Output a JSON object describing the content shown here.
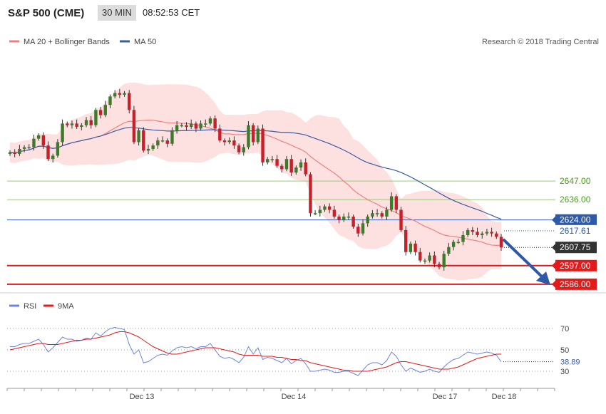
{
  "header": {
    "title": "S&P 500 (CME)",
    "timeframe": "30 MIN",
    "time": "08:52:53 CET"
  },
  "legend": {
    "items": [
      {
        "label": "MA 20 + Bollinger Bands",
        "color": "#f08080"
      },
      {
        "label": "MA 50",
        "color": "#3b5ba5"
      }
    ],
    "credit": "Research © 2018 Trading Central"
  },
  "price_levels": [
    {
      "value": 2647.0,
      "label": "2647.00",
      "color": "#8dc26b",
      "label_color": "#4a9a1e",
      "bg": "#ffffff",
      "style": "thin-line"
    },
    {
      "value": 2636.0,
      "label": "2636.00",
      "color": "#8dc26b",
      "label_color": "#4a9a1e",
      "bg": "#ffffff",
      "style": "thin-line"
    },
    {
      "value": 2624.0,
      "label": "2624.00",
      "color": "#2d5aa8",
      "label_color": "#ffffff",
      "bg": "#2d5aa8",
      "style": "line"
    },
    {
      "value": 2617.61,
      "label": "2617.61",
      "color": "#2d5aa8",
      "label_color": "#2d5aa8",
      "bg": "#ffffff",
      "style": "dotted"
    },
    {
      "value": 2607.75,
      "label": "2607.75",
      "color": "#222222",
      "label_color": "#ffffff",
      "bg": "#333333",
      "style": "dotted"
    },
    {
      "value": 2597.0,
      "label": "2597.00",
      "color": "#e21a1a",
      "label_color": "#ffffff",
      "bg": "#e21a1a",
      "style": "thick-line"
    },
    {
      "value": 2586.0,
      "label": "2586.00",
      "color": "#e21a1a",
      "label_color": "#ffffff",
      "bg": "#e21a1a",
      "style": "thick-line"
    }
  ],
  "rsi_legend": [
    {
      "label": "RSI",
      "color": "#6d85e0"
    },
    {
      "label": "9MA",
      "color": "#e21a1a"
    }
  ],
  "rsi_ticks": [
    "70",
    "50",
    "30"
  ],
  "rsi_current": "38.89",
  "date_labels": [
    "Dec 13",
    "Dec 14",
    "Dec 17",
    "Dec 18"
  ],
  "chart_data": {
    "type": "line",
    "title": "S&P 500 (CME)",
    "subtitle": "30 MIN",
    "price_series": {
      "name": "",
      "values": [
        2664,
        2663,
        2666,
        2667,
        2667,
        2672,
        2674,
        2668,
        2660,
        2662,
        2670,
        2681,
        2680,
        2681,
        2679,
        2680,
        2683,
        2680,
        2689,
        2686,
        2692,
        2697,
        2699,
        2698,
        2699,
        2689,
        2670,
        2677,
        2665,
        2666,
        2668,
        2671,
        2671,
        2669,
        2677,
        2680,
        2680,
        2679,
        2681,
        2678,
        2681,
        2681,
        2684,
        2678,
        2671,
        2670,
        2671,
        2668,
        2664,
        2667,
        2680,
        2670,
        2678,
        2658,
        2660,
        2660,
        2656,
        2654,
        2660,
        2652,
        2655,
        2658,
        2651,
        2628,
        2628,
        2630,
        2632,
        2630,
        2626,
        2624,
        2626,
        2626,
        2620,
        2616,
        2622,
        2626,
        2628,
        2628,
        2626,
        2630,
        2638,
        2630,
        2618,
        2605,
        2610,
        2605,
        2600,
        2600,
        2603,
        2598,
        2596,
        2604,
        2608,
        2611,
        2611,
        2615,
        2618,
        2617,
        2615,
        2616,
        2617,
        2616,
        2614,
        2607.75
      ]
    },
    "rsi_series": {
      "name": "RSI",
      "values": [
        53,
        53,
        55,
        56,
        56,
        58,
        60,
        55,
        48,
        52,
        57,
        62,
        60,
        60,
        58,
        59,
        61,
        60,
        66,
        63,
        67,
        70,
        71,
        70,
        69,
        55,
        46,
        50,
        38,
        39,
        42,
        45,
        46,
        45,
        49,
        52,
        53,
        52,
        53,
        51,
        53,
        53,
        56,
        50,
        44,
        42,
        43,
        41,
        38,
        43,
        53,
        46,
        52,
        41,
        43,
        42,
        40,
        38,
        42,
        37,
        40,
        42,
        37,
        30,
        30,
        31,
        32,
        31,
        29,
        29,
        30,
        30,
        28,
        26,
        31,
        36,
        38,
        38,
        36,
        40,
        48,
        44,
        36,
        30,
        33,
        31,
        29,
        30,
        32,
        30,
        29,
        34,
        38,
        41,
        42,
        45,
        48,
        47,
        46,
        47,
        48,
        47,
        45,
        38.89
      ]
    },
    "rsi_ma9_series": {
      "name": "9MA",
      "values": [
        50,
        51,
        52,
        53,
        54,
        55,
        56,
        56,
        55,
        55,
        55,
        56,
        57,
        58,
        59,
        59,
        60,
        60,
        61,
        62,
        63,
        64,
        66,
        67,
        67,
        66,
        64,
        62,
        59,
        56,
        53,
        51,
        49,
        47,
        46,
        46,
        47,
        48,
        49,
        50,
        51,
        52,
        52,
        52,
        51,
        50,
        49,
        48,
        46,
        45,
        45,
        45,
        45,
        44,
        44,
        44,
        43,
        43,
        42,
        41,
        41,
        40,
        40,
        38,
        37,
        36,
        35,
        34,
        33,
        32,
        31,
        31,
        30,
        30,
        30,
        30,
        31,
        32,
        33,
        34,
        36,
        38,
        39,
        39,
        38,
        37,
        36,
        35,
        34,
        33,
        32,
        32,
        32,
        33,
        34,
        36,
        38,
        40,
        42,
        43,
        44,
        45,
        46,
        46
      ]
    },
    "y_range": [
      2583,
      2722
    ],
    "rsi_range": [
      20,
      80
    ],
    "grid": false,
    "legend_position": "top-left"
  }
}
